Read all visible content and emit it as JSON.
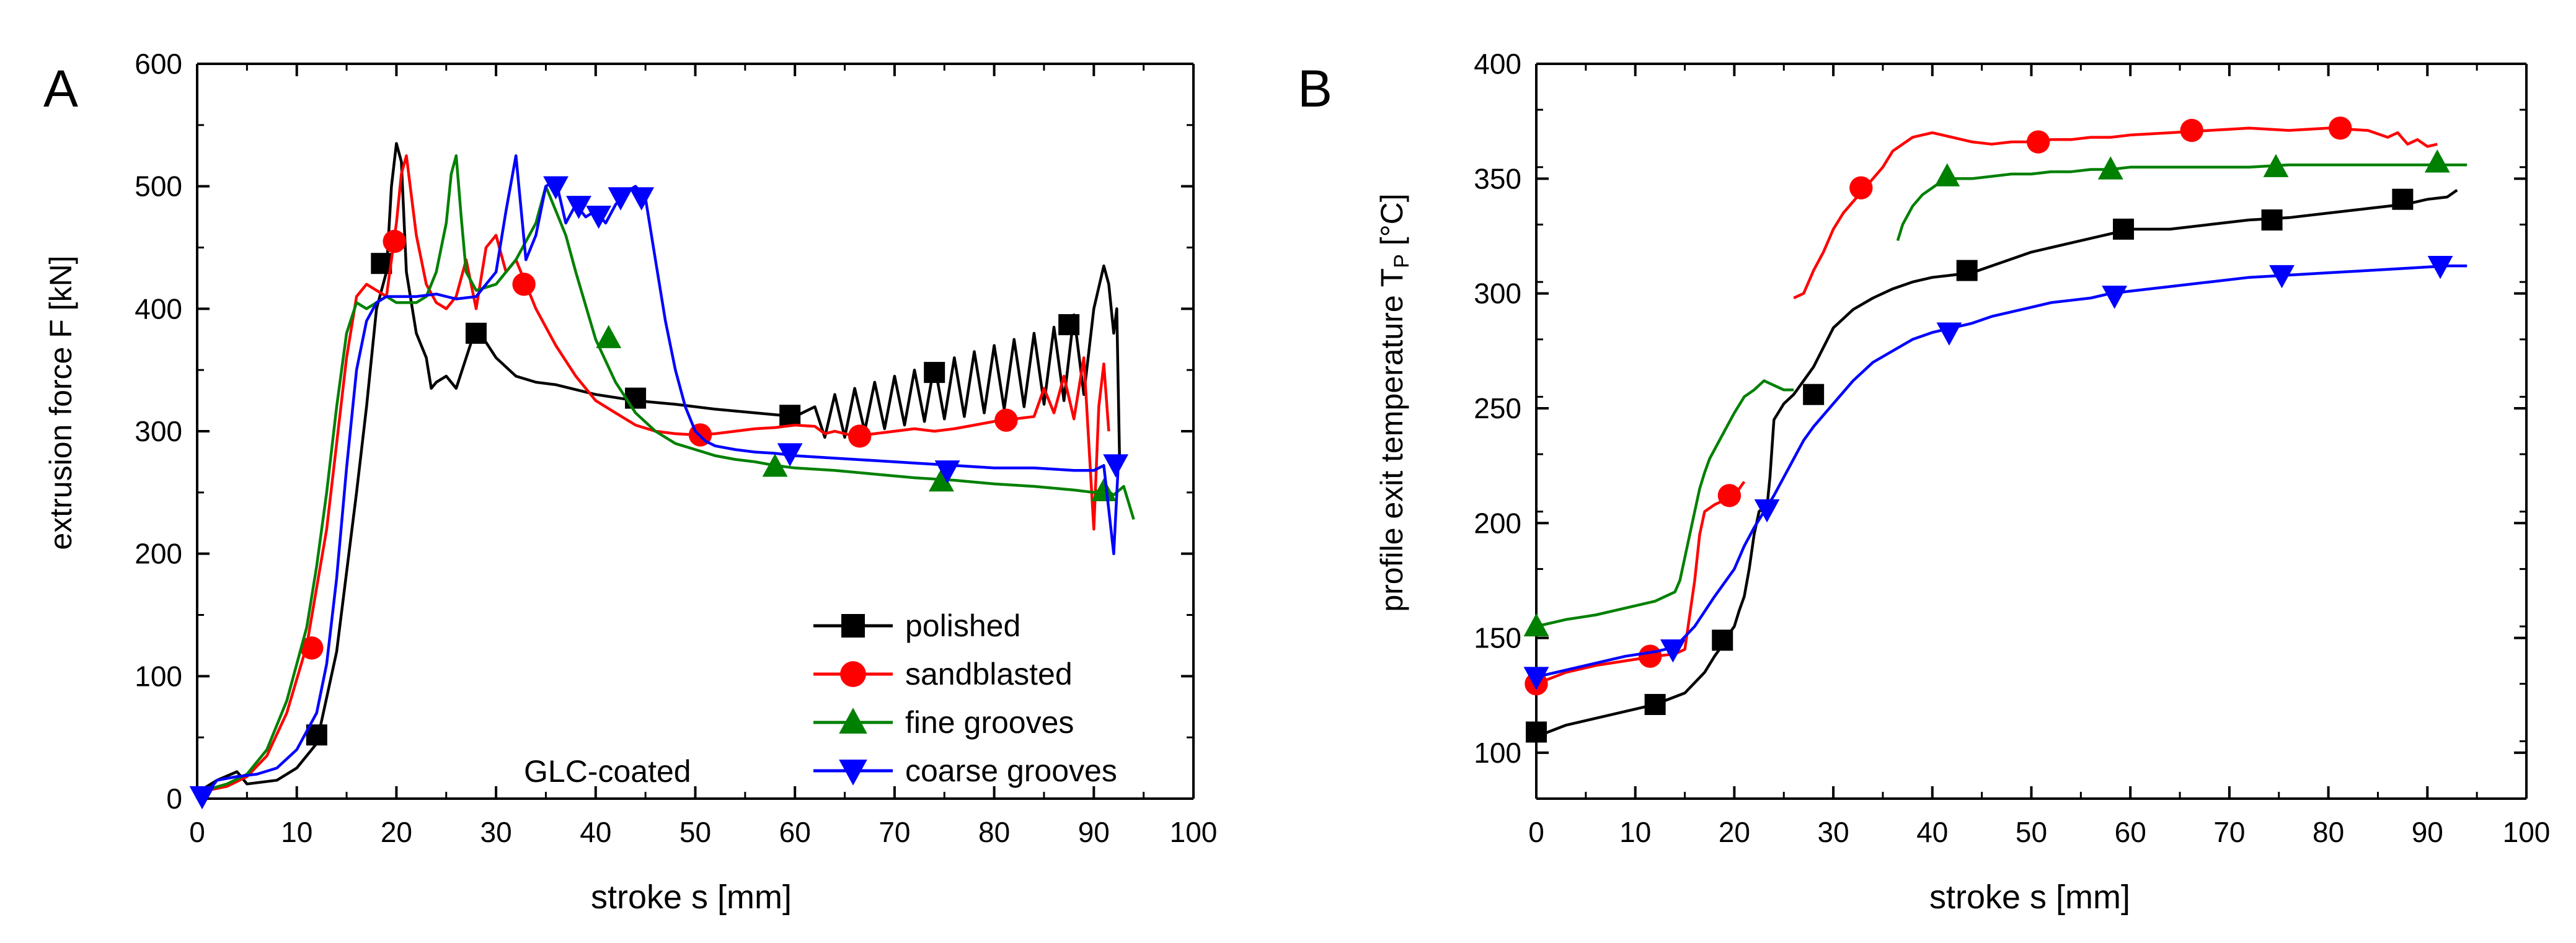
{
  "figure": {
    "background": "#ffffff"
  },
  "chart_data": [
    {
      "panel_label": "A",
      "type": "line",
      "title": "",
      "xlabel": "stroke s [mm]",
      "ylabel": "extrusion force F [kN]",
      "xlim": [
        0,
        100
      ],
      "ylim": [
        0,
        600
      ],
      "xticks": [
        0,
        10,
        20,
        30,
        40,
        50,
        60,
        70,
        80,
        90,
        100
      ],
      "yticks": [
        0,
        100,
        200,
        300,
        400,
        500,
        600
      ],
      "annotation": "GLC-coated",
      "legend_position": "bottom-right",
      "series": [
        {
          "name": "polished",
          "color": "#000000",
          "marker": "square",
          "x": [
            0,
            2,
            4,
            5,
            8,
            10,
            12,
            14,
            16,
            17,
            18,
            19,
            19.5,
            20,
            20.5,
            21,
            22,
            23,
            23.5,
            24,
            25,
            26,
            27,
            28,
            30,
            32,
            34,
            36,
            40,
            44,
            48,
            52,
            56,
            60,
            62,
            63,
            64,
            65,
            66,
            67,
            68,
            69,
            70,
            71,
            72,
            73,
            74,
            75,
            76,
            77,
            78,
            79,
            80,
            81,
            82,
            83,
            84,
            85,
            86,
            87,
            88,
            89,
            90,
            91,
            91.5,
            92,
            92.3,
            92.6
          ],
          "y": [
            5,
            15,
            22,
            12,
            15,
            25,
            45,
            120,
            250,
            320,
            400,
            430,
            500,
            535,
            520,
            430,
            380,
            360,
            335,
            340,
            345,
            335,
            360,
            385,
            360,
            345,
            340,
            338,
            330,
            325,
            322,
            318,
            315,
            312,
            320,
            295,
            330,
            295,
            335,
            300,
            340,
            302,
            345,
            305,
            350,
            308,
            355,
            310,
            360,
            312,
            365,
            315,
            370,
            318,
            375,
            320,
            380,
            322,
            385,
            325,
            395,
            330,
            400,
            435,
            420,
            380,
            400,
            270
          ],
          "marker_x": [
            12,
            18.5,
            28,
            44,
            59.5,
            74,
            87.5
          ],
          "marker_y": [
            52,
            437,
            380,
            327,
            313,
            348,
            387
          ]
        },
        {
          "name": "sandblasted",
          "color": "#ff0000",
          "marker": "circle",
          "x": [
            0,
            3,
            5,
            7,
            9,
            11,
            13,
            14,
            15,
            16,
            17,
            18,
            19,
            19.5,
            20,
            20.5,
            21,
            22,
            23,
            24,
            25,
            26,
            27,
            28,
            29,
            30,
            31,
            32,
            33,
            34,
            36,
            38,
            40,
            42,
            44,
            46,
            48,
            50,
            52,
            54,
            56,
            58,
            60,
            62,
            63,
            64,
            66,
            68,
            70,
            72,
            74,
            76,
            78,
            80,
            82,
            84,
            85,
            86,
            87,
            88,
            89,
            90,
            90.5,
            91,
            91.5
          ],
          "y": [
            5,
            10,
            18,
            35,
            70,
            125,
            220,
            290,
            360,
            410,
            420,
            415,
            410,
            440,
            470,
            510,
            525,
            460,
            420,
            405,
            400,
            410,
            440,
            400,
            450,
            460,
            430,
            440,
            420,
            400,
            370,
            345,
            325,
            315,
            305,
            300,
            298,
            297,
            298,
            300,
            302,
            303,
            305,
            304,
            298,
            300,
            296,
            298,
            300,
            302,
            300,
            302,
            305,
            308,
            310,
            312,
            335,
            315,
            345,
            310,
            360,
            220,
            320,
            355,
            300
          ],
          "marker_x": [
            11.5,
            19.8,
            32.8,
            50.5,
            66.5,
            81.2
          ],
          "marker_y": [
            123,
            455,
            420,
            297,
            296,
            309
          ]
        },
        {
          "name": "fine grooves",
          "color": "#008000",
          "marker": "triangle-up",
          "x": [
            0,
            3,
            5,
            7,
            9,
            11,
            12,
            13,
            14,
            15,
            16,
            17,
            18,
            19,
            20,
            21,
            22,
            23,
            24,
            25,
            25.5,
            26,
            26.5,
            27,
            28,
            30,
            32,
            34,
            35,
            36,
            37,
            38,
            40,
            42,
            44,
            46,
            48,
            50,
            52,
            54,
            56,
            58,
            60,
            64,
            68,
            72,
            76,
            80,
            84,
            88,
            90,
            91,
            92,
            93,
            94
          ],
          "y": [
            5,
            12,
            20,
            40,
            80,
            140,
            190,
            250,
            320,
            380,
            405,
            400,
            405,
            410,
            405,
            405,
            405,
            410,
            430,
            470,
            510,
            525,
            475,
            430,
            415,
            420,
            440,
            470,
            500,
            480,
            460,
            430,
            375,
            340,
            315,
            300,
            290,
            285,
            280,
            277,
            275,
            272,
            270,
            268,
            265,
            262,
            260,
            257,
            255,
            252,
            250,
            253,
            248,
            255,
            228
          ],
          "marker_x": [
            41.3,
            58,
            74.7,
            91
          ],
          "marker_y": [
            376,
            271,
            259,
            251
          ]
        },
        {
          "name": "coarse grooves",
          "color": "#0000ff",
          "marker": "triangle-down",
          "x": [
            0,
            1,
            2,
            4,
            6,
            8,
            10,
            12,
            13,
            14,
            15,
            16,
            17,
            18,
            19,
            20,
            22,
            24,
            26,
            28,
            30,
            31,
            32,
            33,
            34,
            35,
            36,
            37,
            38,
            39,
            40,
            41,
            42,
            43,
            44,
            45,
            46,
            47,
            48,
            49,
            50,
            51,
            52,
            54,
            56,
            58,
            60,
            64,
            68,
            72,
            76,
            80,
            84,
            88,
            90,
            91,
            92,
            92.5
          ],
          "y": [
            2,
            5,
            15,
            18,
            20,
            25,
            40,
            70,
            110,
            180,
            270,
            350,
            390,
            405,
            410,
            410,
            410,
            412,
            408,
            410,
            430,
            480,
            525,
            440,
            460,
            500,
            505,
            470,
            485,
            475,
            480,
            470,
            485,
            495,
            500,
            490,
            440,
            390,
            350,
            320,
            300,
            292,
            288,
            285,
            283,
            282,
            280,
            278,
            276,
            274,
            272,
            270,
            270,
            268,
            268,
            272,
            200,
            280
          ],
          "marker_x": [
            0.5,
            36,
            38.3,
            40.3,
            42.5,
            44.6,
            59.5,
            75.3,
            92.2
          ],
          "marker_y": [
            2,
            500,
            484,
            476,
            491,
            491,
            282,
            268,
            273
          ]
        }
      ]
    },
    {
      "panel_label": "B",
      "type": "line",
      "title": "",
      "xlabel": "stroke s [mm]",
      "ylabel_main": "profile exit temperature T",
      "ylabel_sub": "P",
      "ylabel_unit": " [°C]",
      "xlim": [
        0,
        100
      ],
      "ylim": [
        80,
        400
      ],
      "xticks": [
        0,
        10,
        20,
        30,
        40,
        50,
        60,
        70,
        80,
        90,
        100
      ],
      "yticks": [
        100,
        150,
        200,
        250,
        300,
        350,
        400
      ],
      "series": [
        {
          "name": "polished",
          "color": "#000000",
          "marker": "square",
          "x": [
            0,
            3,
            6,
            9,
            12,
            15,
            17,
            18,
            19,
            19.5,
            20,
            20.5,
            21,
            21.5,
            22,
            22.5,
            23,
            23.3,
            23.6,
            24,
            25,
            26,
            27,
            28,
            30,
            32,
            34,
            36,
            38,
            40,
            42,
            44,
            46,
            48,
            50,
            52,
            54,
            56,
            58,
            60,
            64,
            68,
            72,
            76,
            80,
            84,
            88,
            90,
            92,
            93
          ],
          "y": [
            107,
            112,
            115,
            118,
            121,
            126,
            135,
            142,
            148,
            152,
            155,
            162,
            168,
            180,
            195,
            205,
            207,
            207,
            220,
            245,
            252,
            256,
            262,
            268,
            285,
            293,
            298,
            302,
            305,
            307,
            308,
            309,
            312,
            315,
            318,
            320,
            322,
            324,
            326,
            328,
            328,
            330,
            332,
            333,
            335,
            337,
            339,
            341,
            342,
            345
          ],
          "marker_x": [
            0,
            12,
            18.8,
            28,
            43.5,
            59.3,
            74.3,
            87.5
          ],
          "marker_y": [
            109,
            121,
            149,
            256,
            310,
            328,
            332,
            341
          ]
        },
        {
          "name": "sandblasted",
          "color": "#ff0000",
          "marker": "circle",
          "x": [
            0,
            3,
            6,
            9,
            12,
            14,
            15,
            15.5,
            16,
            16.5,
            17,
            18,
            19,
            20,
            21
          ],
          "y": [
            130,
            135,
            138,
            140,
            142,
            143,
            145,
            160,
            175,
            195,
            205,
            208,
            210,
            212,
            218
          ],
          "x2": [
            26,
            27,
            28,
            29,
            30,
            31,
            32,
            33,
            34,
            35,
            36,
            38,
            40,
            42,
            44,
            46,
            48,
            50,
            52,
            54,
            56,
            58,
            60,
            64,
            68,
            72,
            76,
            80,
            84,
            86,
            87,
            88,
            89,
            90,
            91
          ],
          "y2": [
            298,
            300,
            310,
            318,
            328,
            335,
            340,
            345,
            350,
            355,
            362,
            368,
            370,
            368,
            366,
            365,
            366,
            366,
            367,
            367,
            368,
            368,
            369,
            370,
            371,
            372,
            371,
            372,
            371,
            368,
            370,
            365,
            367,
            364,
            365
          ],
          "marker_x": [
            0,
            11.5,
            19.5,
            32.8,
            50.7,
            66.2,
            81.2
          ],
          "marker_y": [
            130,
            142,
            212,
            346,
            366,
            371,
            372
          ]
        },
        {
          "name": "fine grooves",
          "color": "#008000",
          "marker": "triangle-up",
          "x": [
            0,
            3,
            6,
            9,
            12,
            13,
            14,
            14.5,
            15,
            15.5,
            16,
            16.5,
            17,
            17.5,
            18,
            18.5,
            19,
            20,
            21,
            22,
            23,
            24,
            25,
            26
          ],
          "y": [
            155,
            158,
            160,
            163,
            166,
            168,
            170,
            175,
            185,
            195,
            205,
            215,
            222,
            228,
            232,
            236,
            240,
            248,
            255,
            258,
            262,
            260,
            258,
            258
          ],
          "x2": [
            36.5,
            37,
            38,
            39,
            40,
            41,
            42,
            44,
            46,
            48,
            50,
            52,
            54,
            56,
            58,
            60,
            64,
            68,
            72,
            76,
            80,
            84,
            88,
            92,
            94
          ],
          "y2": [
            323,
            330,
            338,
            343,
            346,
            349,
            350,
            350,
            351,
            352,
            352,
            353,
            353,
            354,
            354,
            355,
            355,
            355,
            355,
            356,
            356,
            356,
            356,
            356,
            356
          ],
          "marker_x": [
            0,
            41.5,
            58,
            74.7,
            91
          ],
          "marker_y": [
            155,
            351,
            354,
            355,
            357
          ]
        },
        {
          "name": "coarse grooves",
          "color": "#0000ff",
          "marker": "triangle-down",
          "x": [
            0,
            3,
            6,
            9,
            12,
            14,
            16,
            18,
            20,
            21,
            22,
            23,
            24,
            25,
            26,
            27,
            28,
            30,
            32,
            34,
            36,
            38,
            40,
            42,
            44,
            46,
            48,
            50,
            52,
            54,
            56,
            58,
            60,
            64,
            68,
            72,
            76,
            80,
            84,
            88,
            92,
            94
          ],
          "y": [
            133,
            136,
            139,
            142,
            144,
            146,
            155,
            168,
            180,
            190,
            198,
            205,
            212,
            220,
            228,
            236,
            242,
            252,
            262,
            270,
            275,
            280,
            283,
            285,
            287,
            290,
            292,
            294,
            296,
            297,
            298,
            300,
            301,
            303,
            305,
            307,
            308,
            309,
            310,
            311,
            312,
            312
          ],
          "marker_x": [
            0,
            13.8,
            23.3,
            41.7,
            58.4,
            75.3,
            91.3
          ],
          "marker_y": [
            133,
            145,
            206,
            283,
            299,
            308,
            312
          ]
        }
      ]
    }
  ]
}
